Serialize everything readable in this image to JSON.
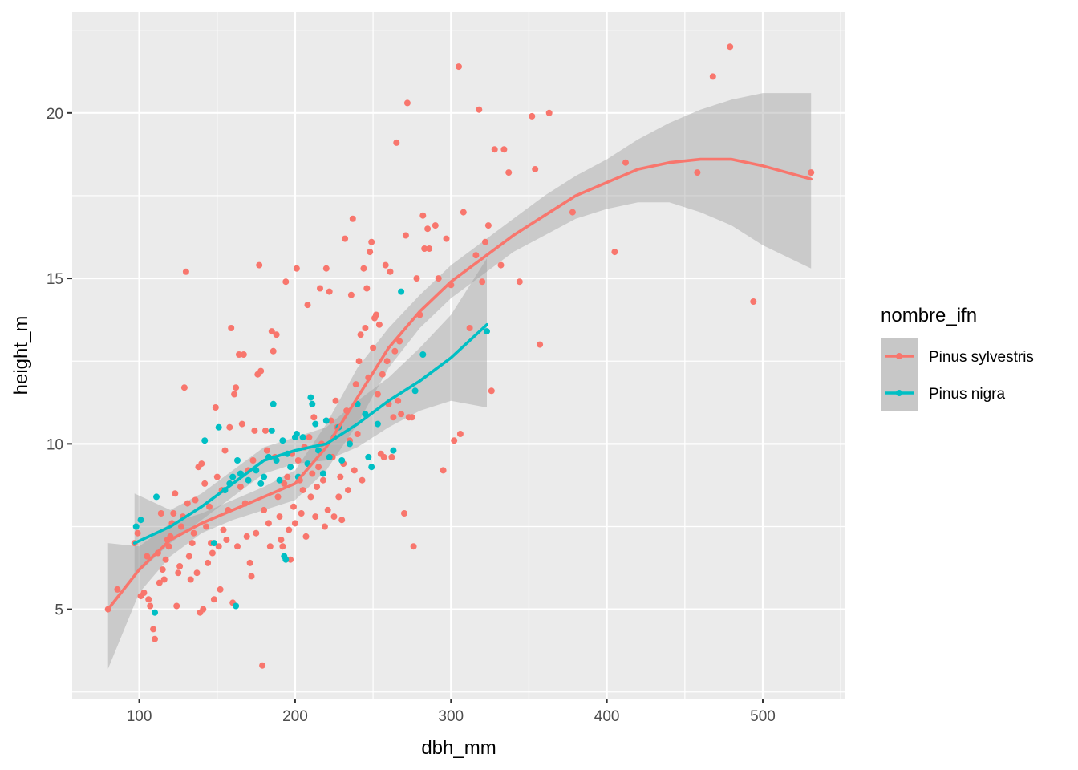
{
  "chart_data": {
    "type": "scatter",
    "xlabel": "dbh_mm",
    "ylabel": "height_m",
    "xlim": [
      57,
      553
    ],
    "ylim": [
      2.3,
      23.05
    ],
    "x_ticks": [
      100,
      200,
      300,
      400,
      500
    ],
    "x_tick_labels": [
      "100",
      "200",
      "300",
      "400",
      "500"
    ],
    "y_ticks": [
      5,
      10,
      15,
      20
    ],
    "y_tick_labels": [
      "5",
      "10",
      "15",
      "20"
    ],
    "grid": true,
    "legend": {
      "title": "nombre_ifn",
      "position": "right"
    },
    "series": [
      {
        "name": "Pinus sylvestris",
        "color": "#F8766D",
        "points": [
          [
            80,
            5.0
          ],
          [
            86,
            5.6
          ],
          [
            97,
            7.0
          ],
          [
            99,
            7.3
          ],
          [
            101,
            5.4
          ],
          [
            103,
            5.5
          ],
          [
            105,
            6.6
          ],
          [
            106,
            5.3
          ],
          [
            107,
            5.1
          ],
          [
            109,
            4.4
          ],
          [
            110,
            4.1
          ],
          [
            112,
            6.7
          ],
          [
            113,
            5.8
          ],
          [
            114,
            7.9
          ],
          [
            115,
            6.2
          ],
          [
            116,
            5.9
          ],
          [
            117,
            6.5
          ],
          [
            118,
            7.1
          ],
          [
            119,
            6.9
          ],
          [
            120,
            7.2
          ],
          [
            121,
            7.6
          ],
          [
            122,
            7.9
          ],
          [
            123,
            8.5
          ],
          [
            124,
            5.1
          ],
          [
            125,
            6.1
          ],
          [
            126,
            6.3
          ],
          [
            127,
            7.5
          ],
          [
            128,
            7.8
          ],
          [
            129,
            11.7
          ],
          [
            130,
            15.2
          ],
          [
            131,
            8.2
          ],
          [
            132,
            6.6
          ],
          [
            133,
            5.9
          ],
          [
            134,
            7.0
          ],
          [
            135,
            7.3
          ],
          [
            136,
            8.3
          ],
          [
            137,
            6.1
          ],
          [
            138,
            9.3
          ],
          [
            139,
            4.9
          ],
          [
            140,
            9.4
          ],
          [
            141,
            5.0
          ],
          [
            142,
            8.8
          ],
          [
            143,
            7.5
          ],
          [
            144,
            6.4
          ],
          [
            145,
            8.1
          ],
          [
            146,
            7.0
          ],
          [
            147,
            6.7
          ],
          [
            148,
            5.3
          ],
          [
            149,
            11.1
          ],
          [
            150,
            9.0
          ],
          [
            151,
            6.9
          ],
          [
            152,
            5.6
          ],
          [
            153,
            8.6
          ],
          [
            154,
            7.4
          ],
          [
            155,
            9.8
          ],
          [
            156,
            7.1
          ],
          [
            157,
            8.0
          ],
          [
            158,
            10.5
          ],
          [
            159,
            13.5
          ],
          [
            160,
            5.2
          ],
          [
            161,
            11.5
          ],
          [
            162,
            11.7
          ],
          [
            163,
            6.9
          ],
          [
            164,
            12.7
          ],
          [
            165,
            8.7
          ],
          [
            166,
            10.6
          ],
          [
            167,
            12.7
          ],
          [
            168,
            8.2
          ],
          [
            169,
            7.2
          ],
          [
            170,
            9.2
          ],
          [
            171,
            6.4
          ],
          [
            172,
            6.0
          ],
          [
            173,
            9.5
          ],
          [
            174,
            10.4
          ],
          [
            175,
            7.3
          ],
          [
            176,
            12.1
          ],
          [
            177,
            15.4
          ],
          [
            178,
            12.2
          ],
          [
            179,
            3.3
          ],
          [
            180,
            8.0
          ],
          [
            181,
            10.4
          ],
          [
            182,
            9.8
          ],
          [
            183,
            7.6
          ],
          [
            184,
            6.9
          ],
          [
            185,
            13.4
          ],
          [
            186,
            12.8
          ],
          [
            187,
            9.6
          ],
          [
            188,
            13.3
          ],
          [
            189,
            8.4
          ],
          [
            190,
            7.8
          ],
          [
            191,
            7.1
          ],
          [
            192,
            6.9
          ],
          [
            193,
            8.8
          ],
          [
            194,
            14.9
          ],
          [
            195,
            9.0
          ],
          [
            196,
            7.4
          ],
          [
            197,
            6.5
          ],
          [
            198,
            9.7
          ],
          [
            199,
            8.1
          ],
          [
            200,
            7.6
          ],
          [
            201,
            15.3
          ],
          [
            202,
            9.5
          ],
          [
            203,
            8.9
          ],
          [
            204,
            7.9
          ],
          [
            205,
            8.6
          ],
          [
            206,
            9.9
          ],
          [
            207,
            7.2
          ],
          [
            208,
            14.2
          ],
          [
            209,
            10.2
          ],
          [
            210,
            8.4
          ],
          [
            211,
            9.1
          ],
          [
            212,
            10.8
          ],
          [
            213,
            7.8
          ],
          [
            214,
            8.7
          ],
          [
            215,
            9.3
          ],
          [
            216,
            14.7
          ],
          [
            217,
            10.0
          ],
          [
            218,
            8.9
          ],
          [
            219,
            7.5
          ],
          [
            220,
            15.3
          ],
          [
            221,
            8.0
          ],
          [
            222,
            14.6
          ],
          [
            223,
            10.7
          ],
          [
            224,
            9.6
          ],
          [
            225,
            7.8
          ],
          [
            226,
            11.3
          ],
          [
            227,
            10.5
          ],
          [
            228,
            8.4
          ],
          [
            229,
            9.0
          ],
          [
            230,
            7.7
          ],
          [
            231,
            9.4
          ],
          [
            232,
            16.2
          ],
          [
            233,
            11.0
          ],
          [
            234,
            8.6
          ],
          [
            235,
            10.1
          ],
          [
            236,
            14.5
          ],
          [
            237,
            16.8
          ],
          [
            238,
            9.2
          ],
          [
            239,
            11.8
          ],
          [
            240,
            10.3
          ],
          [
            241,
            12.5
          ],
          [
            242,
            13.3
          ],
          [
            243,
            8.9
          ],
          [
            244,
            15.3
          ],
          [
            245,
            13.5
          ],
          [
            246,
            14.7
          ],
          [
            247,
            12.0
          ],
          [
            248,
            15.8
          ],
          [
            249,
            16.1
          ],
          [
            250,
            12.9
          ],
          [
            251,
            13.8
          ],
          [
            252,
            13.9
          ],
          [
            253,
            11.5
          ],
          [
            254,
            13.6
          ],
          [
            255,
            9.7
          ],
          [
            256,
            12.1
          ],
          [
            257,
            9.6
          ],
          [
            258,
            15.4
          ],
          [
            259,
            12.5
          ],
          [
            260,
            11.2
          ],
          [
            261,
            15.2
          ],
          [
            262,
            9.6
          ],
          [
            263,
            10.8
          ],
          [
            264,
            12.8
          ],
          [
            265,
            19.1
          ],
          [
            266,
            11.3
          ],
          [
            267,
            13.1
          ],
          [
            268,
            10.9
          ],
          [
            270,
            7.9
          ],
          [
            271,
            16.3
          ],
          [
            272,
            20.3
          ],
          [
            273,
            10.8
          ],
          [
            275,
            10.8
          ],
          [
            276,
            6.9
          ],
          [
            278,
            15.0
          ],
          [
            280,
            13.9
          ],
          [
            282,
            16.9
          ],
          [
            283,
            15.9
          ],
          [
            285,
            16.5
          ],
          [
            286,
            15.9
          ],
          [
            290,
            16.6
          ],
          [
            292,
            15.0
          ],
          [
            295,
            9.2
          ],
          [
            297,
            16.2
          ],
          [
            300,
            14.8
          ],
          [
            302,
            10.1
          ],
          [
            305,
            21.4
          ],
          [
            306,
            10.3
          ],
          [
            308,
            17.0
          ],
          [
            312,
            13.5
          ],
          [
            316,
            15.7
          ],
          [
            318,
            20.1
          ],
          [
            320,
            14.9
          ],
          [
            322,
            16.1
          ],
          [
            324,
            16.6
          ],
          [
            326,
            11.6
          ],
          [
            328,
            18.9
          ],
          [
            332,
            15.4
          ],
          [
            334,
            18.9
          ],
          [
            337,
            18.2
          ],
          [
            344,
            14.9
          ],
          [
            352,
            19.9
          ],
          [
            354,
            18.3
          ],
          [
            357,
            13.0
          ],
          [
            363,
            20.0
          ],
          [
            378,
            17.0
          ],
          [
            405,
            15.8
          ],
          [
            412,
            18.5
          ],
          [
            458,
            18.2
          ],
          [
            468,
            21.1
          ],
          [
            479,
            22.0
          ],
          [
            494,
            14.3
          ],
          [
            531,
            18.2
          ]
        ],
        "smooth": {
          "x": [
            80,
            100,
            120,
            140,
            160,
            180,
            200,
            220,
            240,
            260,
            280,
            300,
            320,
            340,
            360,
            380,
            400,
            420,
            440,
            460,
            480,
            500,
            531
          ],
          "y": [
            5.0,
            6.2,
            7.1,
            7.6,
            8.0,
            8.4,
            8.8,
            9.9,
            11.4,
            12.9,
            14.0,
            14.9,
            15.6,
            16.3,
            16.9,
            17.5,
            17.9,
            18.3,
            18.5,
            18.6,
            18.6,
            18.4,
            18.0
          ],
          "lower": [
            3.2,
            5.5,
            6.6,
            7.3,
            7.7,
            8.0,
            8.3,
            9.2,
            10.6,
            12.3,
            13.5,
            14.4,
            15.1,
            15.8,
            16.3,
            16.8,
            17.1,
            17.3,
            17.3,
            17.0,
            16.6,
            16.0,
            15.3
          ],
          "upper": [
            7.0,
            6.9,
            7.6,
            7.9,
            8.3,
            8.7,
            9.2,
            10.6,
            12.3,
            13.5,
            14.5,
            15.4,
            16.1,
            16.8,
            17.5,
            18.1,
            18.6,
            19.2,
            19.7,
            20.1,
            20.4,
            20.6,
            20.6
          ]
        }
      },
      {
        "name": "Pinus nigra",
        "color": "#00BFC4",
        "points": [
          [
            98,
            7.5
          ],
          [
            101,
            7.7
          ],
          [
            110,
            4.9
          ],
          [
            111,
            8.4
          ],
          [
            142,
            10.1
          ],
          [
            148,
            7.0
          ],
          [
            151,
            10.5
          ],
          [
            155,
            8.6
          ],
          [
            158,
            8.8
          ],
          [
            160,
            9.0
          ],
          [
            162,
            5.1
          ],
          [
            163,
            9.5
          ],
          [
            165,
            9.1
          ],
          [
            170,
            8.9
          ],
          [
            175,
            9.2
          ],
          [
            178,
            8.8
          ],
          [
            180,
            9.0
          ],
          [
            183,
            9.6
          ],
          [
            185,
            10.4
          ],
          [
            186,
            11.2
          ],
          [
            188,
            9.5
          ],
          [
            190,
            8.9
          ],
          [
            192,
            10.1
          ],
          [
            193,
            6.6
          ],
          [
            194,
            6.5
          ],
          [
            195,
            9.7
          ],
          [
            197,
            9.3
          ],
          [
            200,
            10.2
          ],
          [
            201,
            10.3
          ],
          [
            202,
            9.0
          ],
          [
            205,
            10.2
          ],
          [
            208,
            9.4
          ],
          [
            210,
            11.4
          ],
          [
            211,
            11.2
          ],
          [
            213,
            10.6
          ],
          [
            215,
            9.8
          ],
          [
            218,
            9.1
          ],
          [
            220,
            10.7
          ],
          [
            222,
            9.6
          ],
          [
            225,
            10.2
          ],
          [
            228,
            10.5
          ],
          [
            230,
            9.5
          ],
          [
            235,
            10.0
          ],
          [
            240,
            11.2
          ],
          [
            245,
            10.9
          ],
          [
            247,
            9.6
          ],
          [
            249,
            9.3
          ],
          [
            253,
            10.6
          ],
          [
            263,
            9.8
          ],
          [
            268,
            14.6
          ],
          [
            277,
            11.6
          ],
          [
            282,
            12.7
          ],
          [
            323,
            13.4
          ]
        ],
        "smooth": {
          "x": [
            97,
            120,
            140,
            160,
            180,
            200,
            220,
            240,
            260,
            280,
            300,
            323
          ],
          "y": [
            7.0,
            7.5,
            8.1,
            8.8,
            9.5,
            9.8,
            10.0,
            10.6,
            11.3,
            11.9,
            12.6,
            13.6
          ],
          "lower": [
            6.0,
            7.0,
            7.7,
            8.4,
            9.1,
            9.4,
            9.5,
            9.9,
            10.5,
            11.0,
            11.3,
            11.1
          ],
          "upper": [
            8.5,
            8.0,
            8.5,
            9.2,
            9.9,
            10.2,
            10.5,
            11.3,
            12.0,
            12.9,
            13.9,
            15.6
          ]
        }
      }
    ]
  }
}
